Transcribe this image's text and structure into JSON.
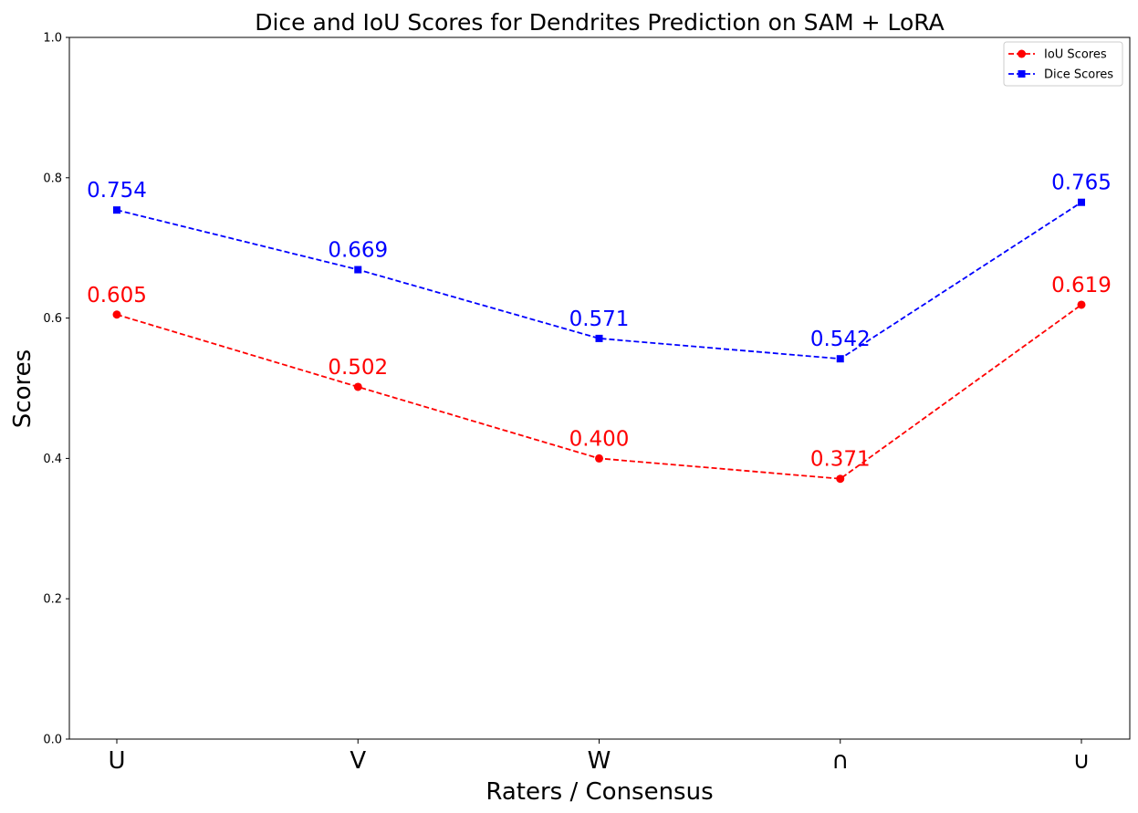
{
  "chart_data": {
    "type": "line",
    "title": "Dice and IoU Scores for Dendrites Prediction on SAM + LoRA",
    "xlabel": "Raters / Consensus",
    "ylabel": "Scores",
    "categories": [
      "U",
      "V",
      "W",
      "∩",
      "∪"
    ],
    "ylim": [
      0,
      1.0
    ],
    "yticks": [
      "0.0",
      "0.2",
      "0.4",
      "0.6",
      "0.8",
      "1.0"
    ],
    "grid": false,
    "legend_position": "top-right",
    "series": [
      {
        "name": "IoU Scores",
        "values": [
          0.605,
          0.502,
          0.4,
          0.371,
          0.619
        ],
        "labels": [
          "0.605",
          "0.502",
          "0.400",
          "0.371",
          "0.619"
        ],
        "color": "#ff0000",
        "marker": "circle",
        "line_style": "dashed"
      },
      {
        "name": "Dice Scores",
        "values": [
          0.754,
          0.669,
          0.571,
          0.542,
          0.765
        ],
        "labels": [
          "0.754",
          "0.669",
          "0.571",
          "0.542",
          "0.765"
        ],
        "color": "#0000ff",
        "marker": "square",
        "line_style": "dashed"
      }
    ]
  }
}
